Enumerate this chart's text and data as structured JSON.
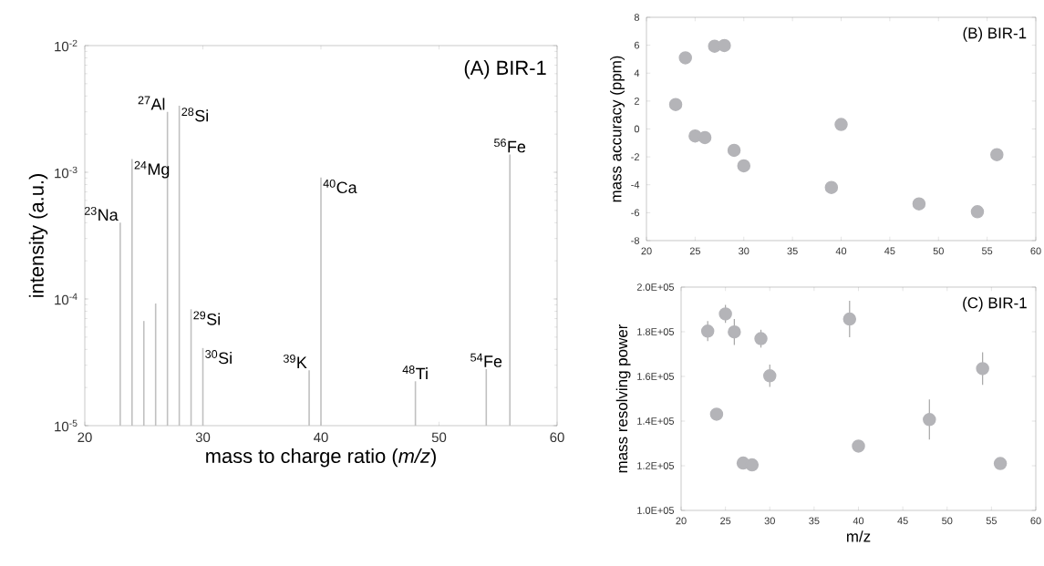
{
  "chart_data": [
    {
      "type": "bar",
      "title": "(A) BIR-1",
      "xlabel": "mass to charge ratio (*m/z*)",
      "ylabel": "intensity (a.u.)",
      "log": "y",
      "color": "#c0c0c0",
      "x": [
        23,
        24,
        25,
        26,
        27,
        28,
        29,
        30,
        39,
        40,
        48,
        54,
        56
      ],
      "values": [
        0.0004,
        0.00127,
        6.7e-05,
        9.2e-05,
        0.003,
        0.00335,
        8.3e-05,
        4.1e-05,
        2.74e-05,
        0.00091,
        2.24e-05,
        2.79e-05,
        0.00138
      ],
      "xlim": [
        20,
        60
      ],
      "ylim": [
        1e-05,
        0.01
      ],
      "xticks": [
        20,
        30,
        40,
        50,
        60
      ],
      "yticks": [
        {
          "value": 1e-05,
          "label": "10$^{-5}$"
        },
        {
          "value": 0.0001,
          "label": "10$^{-4}$"
        },
        {
          "value": 0.001,
          "label": "10$^{-3}$"
        },
        {
          "value": 0.01,
          "label": "10$^{-2}$"
        }
      ],
      "annotations": [
        {
          "text": "$^{23}$Na",
          "x": 23,
          "y": 0.0004
        },
        {
          "text": "$^{24}$Mg",
          "x": 24,
          "y": 0.00127
        },
        {
          "text": "$^{27}$Al",
          "x": 27,
          "y": 0.003
        },
        {
          "text": "$^{28}$Si",
          "x": 28,
          "y": 0.00335
        },
        {
          "text": "$^{29}$Si",
          "x": 29,
          "y": 8.3e-05
        },
        {
          "text": "$^{30}$Si",
          "x": 30,
          "y": 4.1e-05
        },
        {
          "text": "$^{39}$K",
          "x": 39,
          "y": 2.74e-05
        },
        {
          "text": "$^{40}$Ca",
          "x": 40,
          "y": 0.00091
        },
        {
          "text": "$^{48}$Ti",
          "x": 48,
          "y": 2.24e-05
        },
        {
          "text": "$^{54}$Fe",
          "x": 54,
          "y": 2.79e-05
        },
        {
          "text": "$^{56}$Fe",
          "x": 56,
          "y": 0.00138
        }
      ]
    },
    {
      "type": "scatter",
      "title": "(B) BIR-1",
      "ylabel": "mass accuracy (ppm)",
      "marker": "circle",
      "color": "#b4b4b8",
      "x": [
        23,
        24,
        25,
        26,
        27,
        28,
        29,
        30,
        39,
        40,
        48,
        54,
        56
      ],
      "values": [
        1.75,
        5.1,
        -0.5,
        -0.62,
        5.93,
        5.98,
        -1.53,
        -2.64,
        -4.19,
        0.32,
        -5.37,
        -5.93,
        -1.84
      ],
      "xlim": [
        20,
        60
      ],
      "ylim": [
        -8,
        8
      ],
      "xticks": [
        20,
        25,
        30,
        35,
        40,
        45,
        50,
        55,
        60
      ],
      "yticks": [
        -8,
        -6,
        -4,
        -2,
        0,
        2,
        4,
        6,
        8
      ]
    },
    {
      "type": "scatter",
      "title": "(C) BIR-1",
      "xlabel": "m/z",
      "ylabel": "mass resolving power",
      "marker": "circle",
      "color": "#b4b4b8",
      "x": [
        23,
        24,
        25,
        26,
        27,
        28,
        29,
        30,
        39,
        40,
        48,
        54,
        56
      ],
      "values": [
        180300,
        143100,
        188000,
        179900,
        121200,
        120400,
        176900,
        160300,
        185700,
        128800,
        140700,
        163500,
        121000
      ],
      "errors": [
        4500,
        null,
        4000,
        5800,
        null,
        null,
        4000,
        5000,
        8200,
        null,
        9000,
        7300,
        null
      ],
      "xlim": [
        20,
        60
      ],
      "ylim": [
        100000,
        200000
      ],
      "xticks": [
        20,
        25,
        30,
        35,
        40,
        45,
        50,
        55,
        60
      ],
      "yticks": [
        {
          "value": 100000,
          "label": "1.0E+05"
        },
        {
          "value": 120000,
          "label": "1.2E+05"
        },
        {
          "value": 140000,
          "label": "1.4E+05"
        },
        {
          "value": 160000,
          "label": "1.6E+05"
        },
        {
          "value": 180000,
          "label": "1.8E+05"
        },
        {
          "value": 200000,
          "label": "2.0E+05"
        }
      ]
    }
  ]
}
